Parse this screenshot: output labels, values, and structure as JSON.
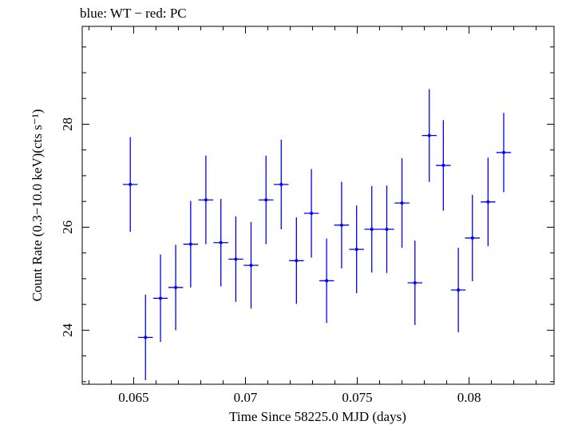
{
  "chart_data": {
    "type": "scatter",
    "title": "blue: WT − red: PC",
    "xlabel": "Time Since 58225.0 MJD (days)",
    "ylabel": "Count Rate (0.3−10.0 keV)(cts s⁻¹)",
    "xlim": [
      0.0627,
      0.0838
    ],
    "ylim": [
      22.95,
      29.9
    ],
    "x_ticks": [
      0.065,
      0.07,
      0.075,
      0.08
    ],
    "x_tick_labels": [
      "0.065",
      "0.07",
      "0.075",
      "0.08"
    ],
    "y_ticks": [
      24,
      26,
      28
    ],
    "y_tick_labels": [
      "24",
      "26",
      "28"
    ],
    "grid": false,
    "series": [
      {
        "color": "#0000ff",
        "x": [
          0.06485,
          0.06553,
          0.0662,
          0.06688,
          0.06755,
          0.06823,
          0.0689,
          0.06957,
          0.07025,
          0.07092,
          0.0716,
          0.07228,
          0.07295,
          0.07363,
          0.0743,
          0.07497,
          0.07565,
          0.07632,
          0.077,
          0.07758,
          0.07822,
          0.07885,
          0.07952,
          0.08015,
          0.08085,
          0.08155
        ],
        "xerr": [
          0.00033,
          0.00033,
          0.00033,
          0.00033,
          0.00033,
          0.00033,
          0.00033,
          0.00033,
          0.00033,
          0.00033,
          0.00033,
          0.00033,
          0.00033,
          0.00033,
          0.00033,
          0.00033,
          0.00033,
          0.00033,
          0.00033,
          0.00033,
          0.00033,
          0.00033,
          0.00033,
          0.00033,
          0.00033,
          0.00033
        ],
        "y": [
          26.83,
          23.86,
          24.62,
          24.83,
          25.67,
          26.53,
          25.7,
          25.38,
          25.26,
          26.53,
          26.83,
          25.35,
          26.27,
          24.96,
          26.04,
          25.57,
          25.96,
          25.96,
          26.47,
          24.92,
          27.78,
          27.2,
          24.78,
          25.79,
          26.49,
          27.45
        ],
        "yerr": [
          0.92,
          0.83,
          0.85,
          0.83,
          0.84,
          0.86,
          0.85,
          0.83,
          0.84,
          0.86,
          0.87,
          0.84,
          0.86,
          0.82,
          0.84,
          0.85,
          0.84,
          0.85,
          0.87,
          0.82,
          0.9,
          0.88,
          0.82,
          0.84,
          0.86,
          0.77
        ]
      }
    ]
  }
}
